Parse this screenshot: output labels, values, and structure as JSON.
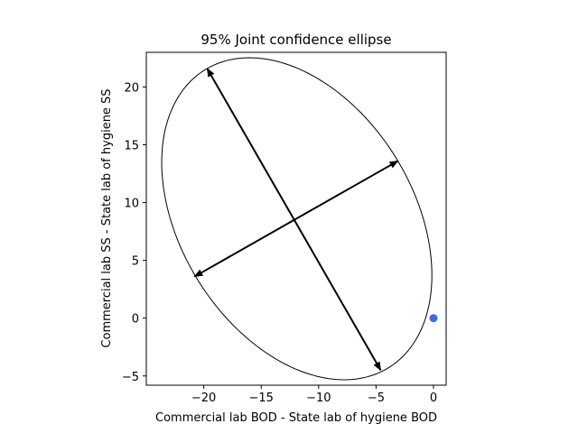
{
  "chart_data": {
    "type": "scatter",
    "title": "95% Joint confidence ellipse",
    "xlabel": "Commercial lab BOD - State lab of hygiene BOD",
    "ylabel": "Commercial lab SS - State lab of hygiene SS",
    "xlim": [
      -25.0,
      1.1
    ],
    "ylim": [
      -5.8,
      23.0
    ],
    "xticks": [
      -20,
      -15,
      -10,
      -5,
      0
    ],
    "yticks": [
      -5,
      0,
      5,
      10,
      15,
      20
    ],
    "xtick_labels": [
      "−20",
      "−15",
      "−10",
      "−5",
      "0"
    ],
    "ytick_labels": [
      "−5",
      "0",
      "5",
      "10",
      "15",
      "20"
    ],
    "grid": false,
    "ellipse": {
      "center": [
        -11.9,
        8.6
      ],
      "major_axis_ends": [
        [
          -19.7,
          21.6
        ],
        [
          -4.6,
          -4.5
        ]
      ],
      "minor_axis_ends": [
        [
          -20.8,
          3.6
        ],
        [
          -3.1,
          13.6
        ]
      ],
      "color": "#000000"
    },
    "points": [
      {
        "x": 0,
        "y": 0,
        "color": "#4169e1"
      }
    ]
  }
}
